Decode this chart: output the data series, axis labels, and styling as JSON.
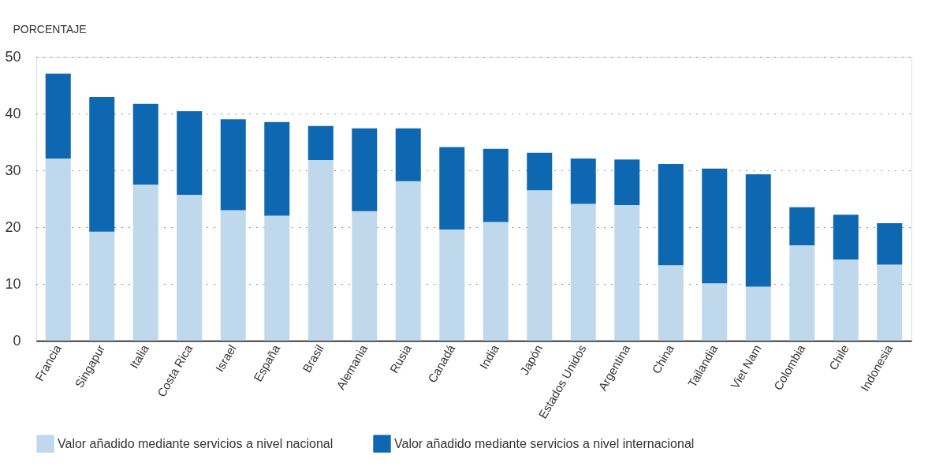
{
  "chart_data": {
    "type": "bar",
    "stacked": true,
    "ylabel": "PORCENTAJE",
    "categories": [
      "Francia",
      "Singapur",
      "Italia",
      "Costa Rica",
      "Israel",
      "España",
      "Brasil",
      "Alemania",
      "Rusia",
      "Canadá",
      "India",
      "Japón",
      "Estados Unidos",
      "Argentina",
      "China",
      "Tailandia",
      "Viet Nam",
      "Colombia",
      "Chile",
      "Indonesia"
    ],
    "series": [
      {
        "name": "Valor añadido mediante servicios a nivel nacional",
        "color": "#c0d8eb",
        "values": [
          32.1,
          19.2,
          27.5,
          25.7,
          23.0,
          22.0,
          31.8,
          22.8,
          28.1,
          19.6,
          20.9,
          26.5,
          24.1,
          23.9,
          13.3,
          10.1,
          9.5,
          16.8,
          14.3,
          13.4
        ]
      },
      {
        "name": "Valor añadido mediante servicios a nivel internacional",
        "color": "#0d67b1",
        "values": [
          14.9,
          23.7,
          14.2,
          14.7,
          16.0,
          16.5,
          6.0,
          14.6,
          9.3,
          14.5,
          12.9,
          6.6,
          8.0,
          8.0,
          17.8,
          20.2,
          19.8,
          6.7,
          7.9,
          7.3
        ]
      }
    ],
    "ylim": [
      0,
      50
    ],
    "yticks": [
      0,
      10,
      20,
      30,
      40,
      50
    ],
    "grid": "y",
    "legend": "bottom"
  }
}
